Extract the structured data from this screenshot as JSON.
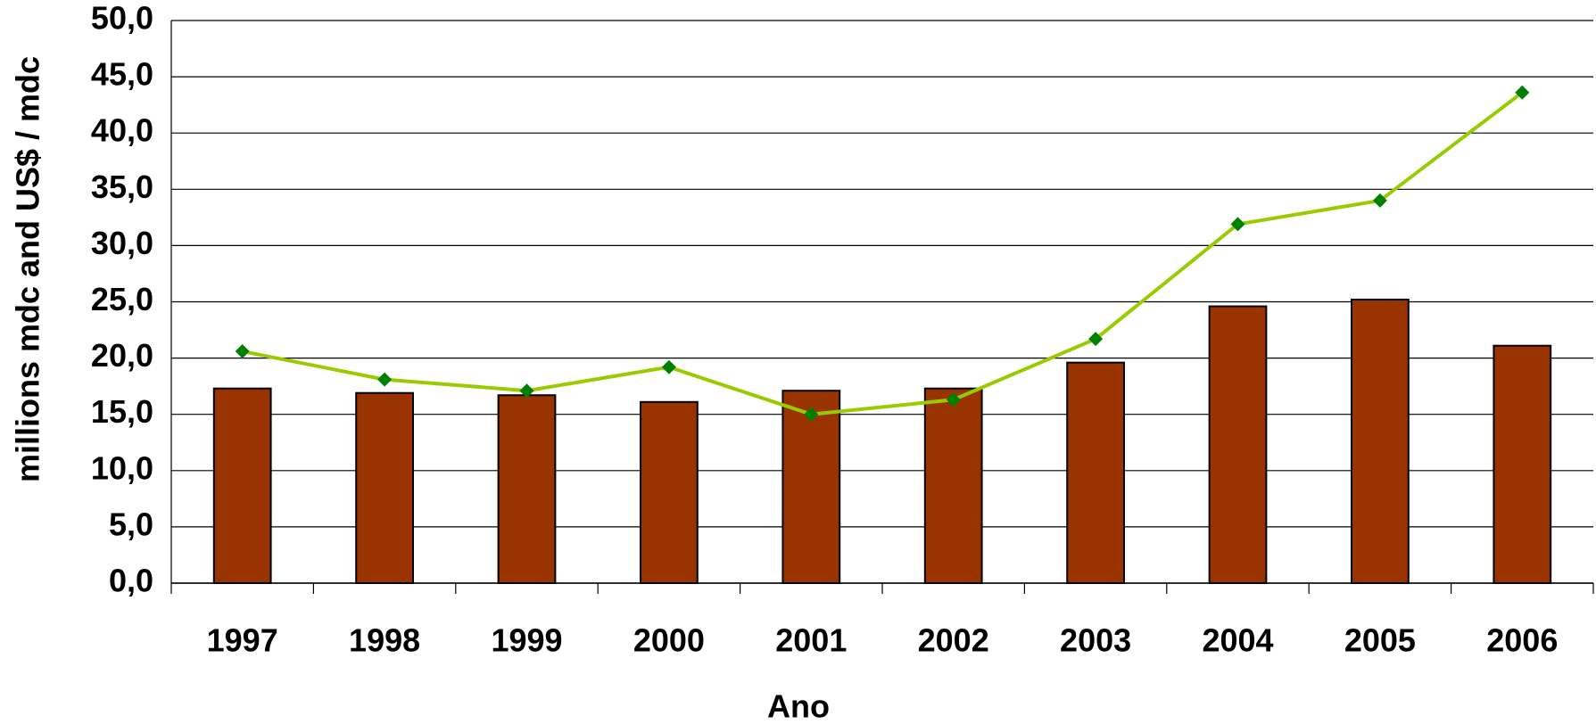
{
  "chart_data": {
    "type": "bar_line",
    "x_label": "Ano",
    "y_label": "millions  mdc and US$ / mdc",
    "categories": [
      "1997",
      "1998",
      "1999",
      "2000",
      "2001",
      "2002",
      "2003",
      "2004",
      "2005",
      "2006"
    ],
    "series": [
      {
        "type": "bar",
        "color": "#993300",
        "values": [
          17.3,
          16.9,
          16.7,
          16.1,
          17.1,
          17.3,
          19.6,
          24.6,
          25.2,
          21.1
        ]
      },
      {
        "type": "line",
        "color": "#99cc00",
        "marker_color": "#008000",
        "values": [
          20.6,
          18.1,
          17.1,
          19.2,
          15.0,
          16.3,
          21.7,
          31.9,
          34.0,
          43.6
        ]
      }
    ],
    "ylim": [
      0,
      50
    ],
    "yticks": [
      {
        "value": 0,
        "label": "0,0"
      },
      {
        "value": 5,
        "label": "5,0"
      },
      {
        "value": 10,
        "label": "10,0"
      },
      {
        "value": 15,
        "label": "15,0"
      },
      {
        "value": 20,
        "label": "20,0"
      },
      {
        "value": 25,
        "label": "25,0"
      },
      {
        "value": 30,
        "label": "30,0"
      },
      {
        "value": 35,
        "label": "35,0"
      },
      {
        "value": 40,
        "label": "40,0"
      },
      {
        "value": 45,
        "label": "45,0"
      },
      {
        "value": 50,
        "label": "50,0"
      }
    ],
    "grid": true
  }
}
